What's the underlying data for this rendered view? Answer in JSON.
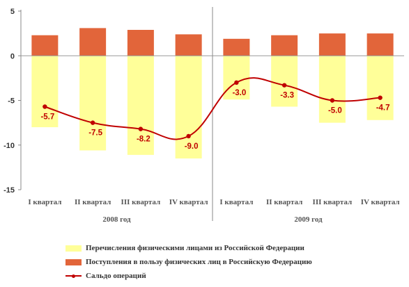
{
  "chart_data": {
    "type": "bar",
    "categories": [
      "I квартал",
      "II квартал",
      "III квартал",
      "IV квартал",
      "I квартал",
      "II квартал",
      "III квартал",
      "IV квартал"
    ],
    "groups": [
      {
        "label": "2008 год",
        "categories": [
          "I квартал",
          "II квартал",
          "III квартал",
          "IV квартал"
        ]
      },
      {
        "label": "2009 год",
        "categories": [
          "I квартал",
          "II квартал",
          "III квартал",
          "IV квартал"
        ]
      }
    ],
    "series": [
      {
        "name": "Перечисления физическими лицами из Российской Федерации",
        "type": "bar",
        "color": "#ffff99",
        "values": [
          -8.0,
          -10.6,
          -11.1,
          -11.5,
          -4.9,
          -5.7,
          -7.5,
          -7.2
        ]
      },
      {
        "name": "Поступления в пользу физических лиц в Российскую Федерацию",
        "type": "bar",
        "color": "#e2653a",
        "values": [
          2.3,
          3.1,
          2.9,
          2.4,
          1.9,
          2.3,
          2.5,
          2.5
        ]
      },
      {
        "name": "Сальдо операций",
        "type": "line",
        "color": "#c00000",
        "values": [
          -5.7,
          -7.5,
          -8.2,
          -9.0,
          -3.0,
          -3.3,
          -5.0,
          -4.7
        ],
        "labels": [
          "-5.7",
          "-7.5",
          "-8.2",
          "-9.0",
          "-3.0",
          "-3.3",
          "-5.0",
          "-4.7"
        ]
      }
    ],
    "yticks": [
      "5",
      "0",
      "-5",
      "-10",
      "-15"
    ],
    "ylim": [
      -15,
      5
    ],
    "grid": false,
    "legend_position": "bottom"
  }
}
